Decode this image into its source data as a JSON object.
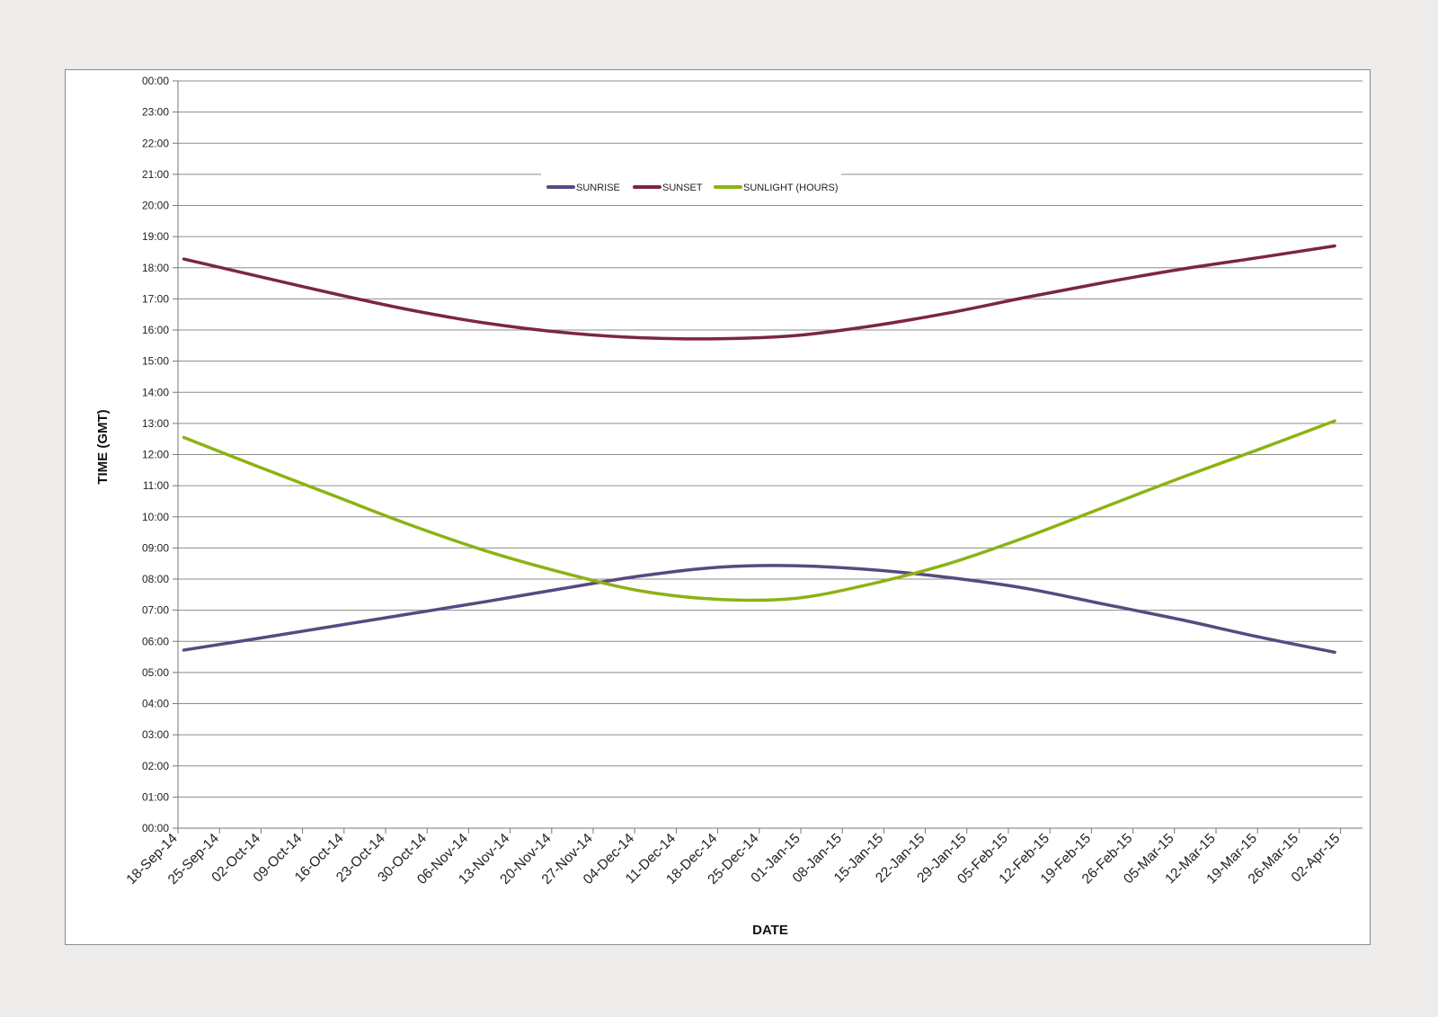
{
  "chart_data": {
    "type": "line",
    "title": "",
    "xlabel": "DATE",
    "ylabel": "TIME (GMT)",
    "ylim": [
      "00:00",
      "24:00"
    ],
    "y_unit": "hours",
    "y_ticks": [
      "00:00",
      "01:00",
      "02:00",
      "03:00",
      "04:00",
      "05:00",
      "06:00",
      "07:00",
      "08:00",
      "09:00",
      "10:00",
      "11:00",
      "12:00",
      "13:00",
      "14:00",
      "15:00",
      "16:00",
      "17:00",
      "18:00",
      "19:00",
      "20:00",
      "21:00",
      "22:00",
      "23:00",
      "00:00"
    ],
    "categories": [
      "18-Sep-14",
      "25-Sep-14",
      "02-Oct-14",
      "09-Oct-14",
      "16-Oct-14",
      "23-Oct-14",
      "30-Oct-14",
      "06-Nov-14",
      "13-Nov-14",
      "20-Nov-14",
      "27-Nov-14",
      "04-Dec-14",
      "11-Dec-14",
      "18-Dec-14",
      "25-Dec-14",
      "01-Jan-15",
      "08-Jan-15",
      "15-Jan-15",
      "22-Jan-15",
      "29-Jan-15",
      "05-Feb-15",
      "12-Feb-15",
      "19-Feb-15",
      "26-Feb-15",
      "05-Mar-15",
      "12-Mar-15",
      "19-Mar-15",
      "26-Mar-15",
      "02-Apr-15"
    ],
    "grid": true,
    "legend_position": "top-center",
    "series": [
      {
        "name": "SUNRISE",
        "color": "#574a80",
        "x": [
          "19-Sep-14",
          "01-Oct-14",
          "14-Oct-14",
          "27-Oct-14",
          "09-Nov-14",
          "22-Nov-14",
          "05-Dec-14",
          "18-Dec-14",
          "31-Dec-14",
          "13-Jan-15",
          "26-Jan-15",
          "08-Feb-15",
          "21-Feb-15",
          "06-Mar-15",
          "19-Mar-15",
          "01-Apr-15"
        ],
        "values": [
          5.72,
          6.08,
          6.48,
          6.88,
          7.28,
          7.7,
          8.1,
          8.38,
          8.43,
          8.3,
          8.05,
          7.7,
          7.2,
          6.7,
          6.15,
          5.65
        ]
      },
      {
        "name": "SUNSET",
        "color": "#7b2643",
        "x": [
          "19-Sep-14",
          "01-Oct-14",
          "14-Oct-14",
          "27-Oct-14",
          "09-Nov-14",
          "22-Nov-14",
          "05-Dec-14",
          "18-Dec-14",
          "31-Dec-14",
          "13-Jan-15",
          "26-Jan-15",
          "08-Feb-15",
          "21-Feb-15",
          "06-Mar-15",
          "19-Mar-15",
          "01-Apr-15"
        ],
        "values": [
          18.28,
          17.75,
          17.18,
          16.65,
          16.22,
          15.92,
          15.75,
          15.72,
          15.82,
          16.13,
          16.55,
          17.05,
          17.52,
          17.95,
          18.32,
          18.7
        ]
      },
      {
        "name": "SUNLIGHT (HOURS)",
        "color": "#8db213",
        "x": [
          "19-Sep-14",
          "01-Oct-14",
          "14-Oct-14",
          "27-Oct-14",
          "09-Nov-14",
          "22-Nov-14",
          "05-Dec-14",
          "18-Dec-14",
          "31-Dec-14",
          "13-Jan-15",
          "26-Jan-15",
          "08-Feb-15",
          "21-Feb-15",
          "06-Mar-15",
          "19-Mar-15",
          "01-Apr-15"
        ],
        "values": [
          12.55,
          11.65,
          10.7,
          9.75,
          8.9,
          8.2,
          7.62,
          7.35,
          7.38,
          7.85,
          8.5,
          9.35,
          10.3,
          11.25,
          12.15,
          13.08
        ]
      }
    ]
  }
}
